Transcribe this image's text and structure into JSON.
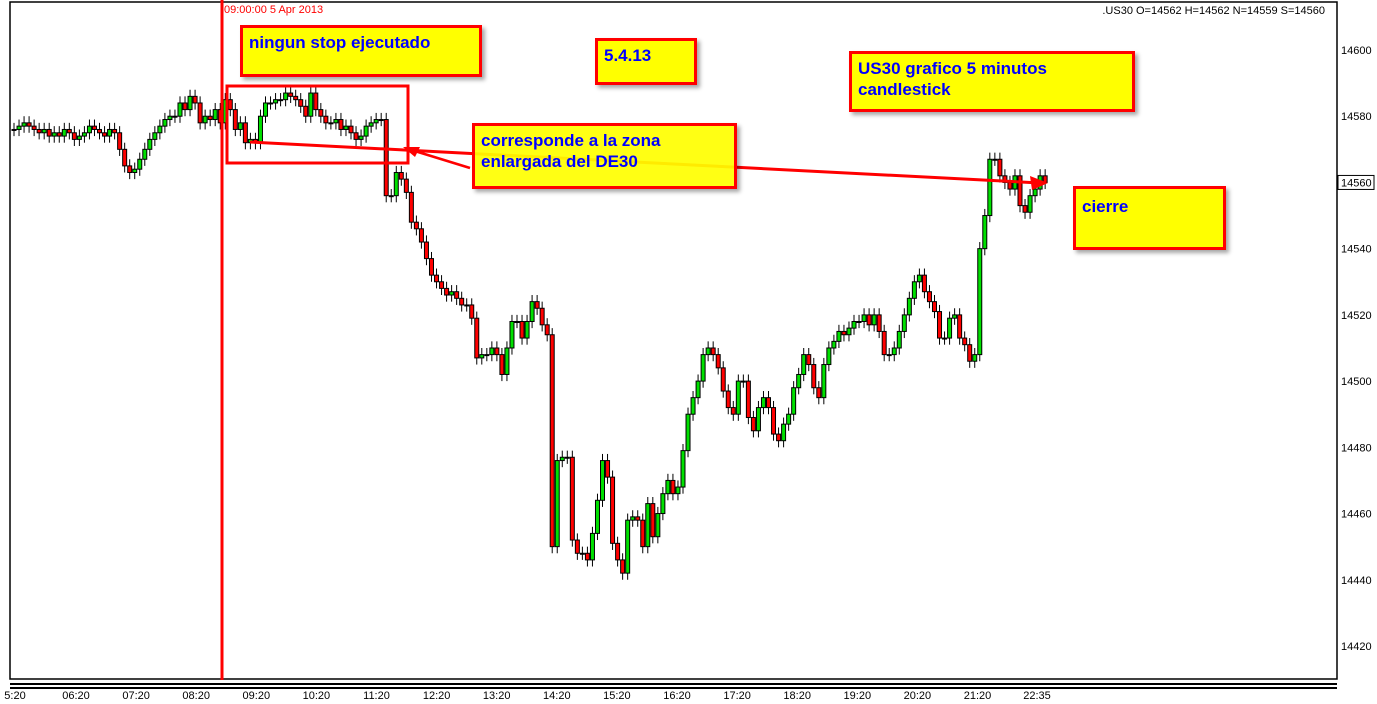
{
  "header": {
    "ohlc_readout": ".US30 O=14562 H=14562 N=14559 S=14560"
  },
  "marker": {
    "label": "09:00:00 5 Apr 2013",
    "color": "#ff0000"
  },
  "annotations": {
    "no_stop": "ningun stop ejecutado",
    "date": "5.4.13",
    "title": "US30 grafico 5 minutos candlestick",
    "zone": "corresponde a la zona enlargada del DE30",
    "close": "cierre"
  },
  "colors": {
    "up": "#00e000",
    "down": "#ff0000",
    "note_bg": "#ffff00",
    "note_border": "#ff0000",
    "note_text": "#0000ff"
  },
  "chart_data": {
    "type": "candlestick",
    "interval": "5 minutes",
    "ylim": [
      14412,
      14612
    ],
    "y_ticks": [
      14600,
      14580,
      14560,
      14540,
      14520,
      14500,
      14480,
      14460,
      14440,
      14420
    ],
    "current_price": 14560,
    "x_ticks": [
      "5:20",
      "06:20",
      "07:20",
      "08:20",
      "09:20",
      "10:20",
      "11:20",
      "12:20",
      "13:20",
      "14:20",
      "15:20",
      "16:20",
      "17:20",
      "18:20",
      "19:20",
      "20:20",
      "21:20",
      "22:35"
    ],
    "grid": false,
    "closes": [
      14576,
      14577,
      14578,
      14577,
      14576,
      14575,
      14576,
      14574,
      14575,
      14574,
      14576,
      14575,
      14573,
      14574,
      14575,
      14577,
      14576,
      14575,
      14574,
      14576,
      14575,
      14570,
      14565,
      14563,
      14564,
      14567,
      14570,
      14573,
      14575,
      14577,
      14579,
      14580,
      14580,
      14584,
      14582,
      14586,
      14584,
      14578,
      14580,
      14579,
      14582,
      14578,
      14585,
      14582,
      14576,
      14578,
      14572,
      14573,
      14572,
      14580,
      14584,
      14584,
      14585,
      14585,
      14587,
      14586,
      14585,
      14583,
      14580,
      14587,
      14582,
      14580,
      14578,
      14578,
      14579,
      14576,
      14577,
      14575,
      14573,
      14574,
      14577,
      14578,
      14579,
      14579,
      14556,
      14556,
      14563,
      14561,
      14557,
      14548,
      14546,
      14542,
      14537,
      14532,
      14530,
      14528,
      14526,
      14527,
      14525,
      14523,
      14523,
      14519,
      14507,
      14508,
      14508,
      14510,
      14508,
      14502,
      14510,
      14518,
      14518,
      14513,
      14518,
      14524,
      14522,
      14517,
      14514,
      14450,
      14476,
      14477,
      14477,
      14452,
      14448,
      14448,
      14446,
      14454,
      14464,
      14476,
      14471,
      14451,
      14446,
      14442,
      14458,
      14459,
      14458,
      14450,
      14463,
      14453,
      14460,
      14466,
      14470,
      14466,
      14468,
      14479,
      14490,
      14495,
      14500,
      14508,
      14510,
      14508,
      14504,
      14497,
      14492,
      14490,
      14500,
      14500,
      14489,
      14485,
      14492,
      14495,
      14492,
      14484,
      14482,
      14487,
      14490,
      14498,
      14502,
      14508,
      14505,
      14498,
      14495,
      14505,
      14510,
      14512,
      14515,
      14514,
      14516,
      14518,
      14518,
      14520,
      14517,
      14520,
      14515,
      14508,
      14508,
      14510,
      14515,
      14520,
      14525,
      14530,
      14532,
      14527,
      14524,
      14521,
      14513,
      14513,
      14519,
      14520,
      14513,
      14511,
      14506,
      14508,
      14540,
      14550,
      14567,
      14567,
      14562,
      14560,
      14558,
      14562,
      14553,
      14551,
      14556,
      14558,
      14562,
      14560
    ]
  }
}
